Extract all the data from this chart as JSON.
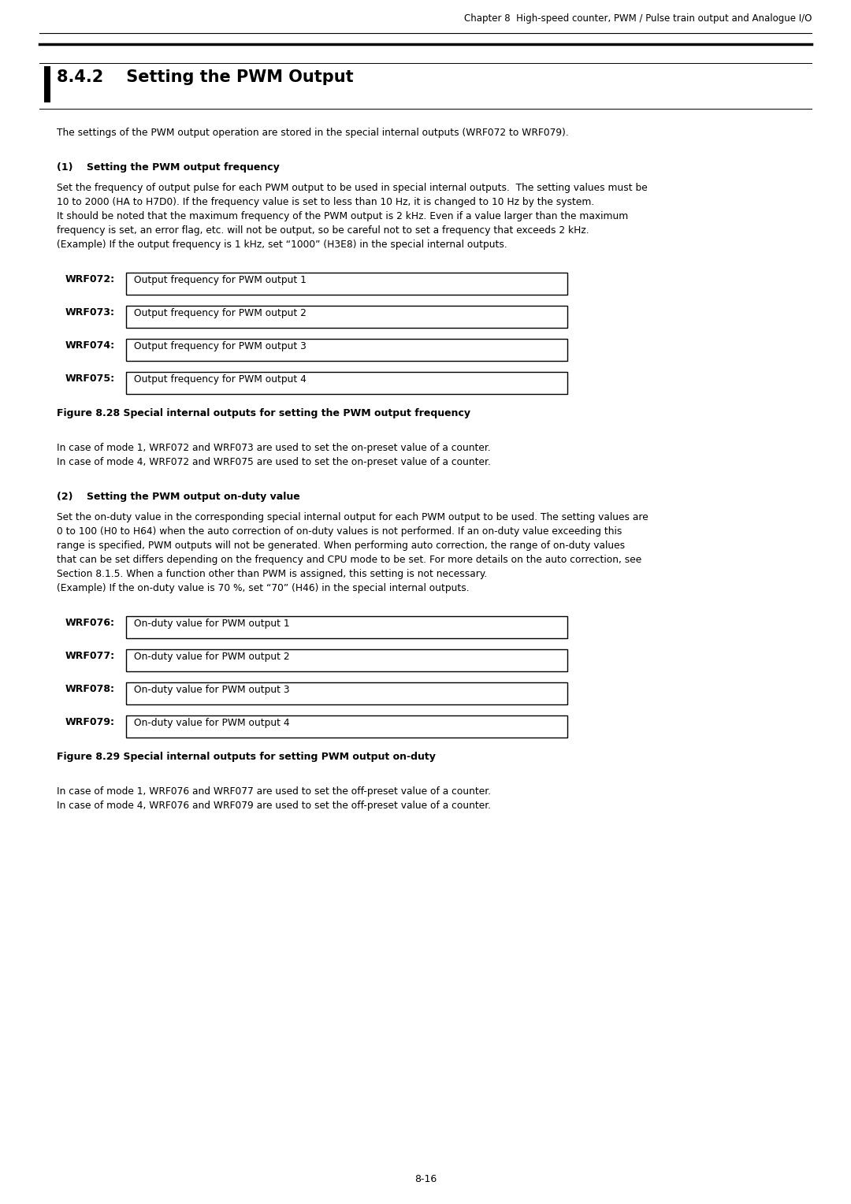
{
  "page_header_right": "Chapter 8  High-speed counter, PWM / Pulse train output and Analogue I/O",
  "page_footer": "8-16",
  "section_title": "8.4.2    Setting the PWM Output",
  "intro_text": "The settings of the PWM output operation are stored in the special internal outputs (WRF072 to WRF079).",
  "section1_heading": "(1)    Setting the PWM output frequency",
  "section1_body": "Set the frequency of output pulse for each PWM output to be used in special internal outputs.  The setting values must be\n10 to 2000 (HA to H7D0). If the frequency value is set to less than 10 Hz, it is changed to 10 Hz by the system.\nIt should be noted that the maximum frequency of the PWM output is 2 kHz. Even if a value larger than the maximum\nfrequency is set, an error flag, etc. will not be output, so be careful not to set a frequency that exceeds 2 kHz.\n(Example) If the output frequency is 1 kHz, set “1000” (H3E8) in the special internal outputs.",
  "fig1_rows": [
    {
      "label": "WRF072:",
      "text": "Output frequency for PWM output 1"
    },
    {
      "label": "WRF073:",
      "text": "Output frequency for PWM output 2"
    },
    {
      "label": "WRF074:",
      "text": "Output frequency for PWM output 3"
    },
    {
      "label": "WRF075:",
      "text": "Output frequency for PWM output 4"
    }
  ],
  "fig1_caption": "Figure 8.28 Special internal outputs for setting the PWM output frequency",
  "section1_note": "In case of mode 1, WRF072 and WRF073 are used to set the on-preset value of a counter.\nIn case of mode 4, WRF072 and WRF075 are used to set the on-preset value of a counter.",
  "section2_heading": "(2)    Setting the PWM output on-duty value",
  "section2_body": "Set the on-duty value in the corresponding special internal output for each PWM output to be used. The setting values are\n0 to 100 (H0 to H64) when the auto correction of on-duty values is not performed. If an on-duty value exceeding this\nrange is specified, PWM outputs will not be generated. When performing auto correction, the range of on-duty values\nthat can be set differs depending on the frequency and CPU mode to be set. For more details on the auto correction, see\nSection 8.1.5. When a function other than PWM is assigned, this setting is not necessary.\n(Example) If the on-duty value is 70 %, set “70” (H46) in the special internal outputs.",
  "fig2_rows": [
    {
      "label": "WRF076:",
      "text": "On-duty value for PWM output 1"
    },
    {
      "label": "WRF077:",
      "text": "On-duty value for PWM output 2"
    },
    {
      "label": "WRF078:",
      "text": "On-duty value for PWM output 3"
    },
    {
      "label": "WRF079:",
      "text": "On-duty value for PWM output 4"
    }
  ],
  "fig2_caption": "Figure 8.29 Special internal outputs for setting PWM output on-duty",
  "section2_note": "In case of mode 1, WRF076 and WRF077 are used to set the off-preset value of a counter.\nIn case of mode 4, WRF076 and WRF079 are used to set the off-preset value of a counter.",
  "bg_color": "#ffffff",
  "text_color": "#000000"
}
